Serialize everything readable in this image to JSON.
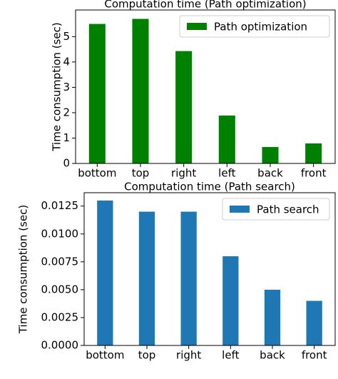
{
  "chart_data": [
    {
      "type": "bar",
      "title": "Computation time (Path optimization)",
      "ylabel": "Time consumption (sec)",
      "categories": [
        "bottom",
        "top",
        "right",
        "left",
        "back",
        "front"
      ],
      "series": [
        {
          "name": "Path optimization",
          "color": "#008000",
          "values": [
            5.5,
            5.7,
            4.43,
            1.89,
            0.65,
            0.79
          ]
        }
      ],
      "ylim": [
        0,
        6.05
      ],
      "yticks": [
        0,
        1,
        2,
        3,
        4,
        5
      ],
      "legend": "upper right"
    },
    {
      "type": "bar",
      "title": "Computation time (Path search)",
      "ylabel": "Time consumption (sec)",
      "categories": [
        "bottom",
        "top",
        "right",
        "left",
        "back",
        "front"
      ],
      "series": [
        {
          "name": "Path search",
          "color": "#1f77b4",
          "values": [
            0.013,
            0.012,
            0.012,
            0.008,
            0.005,
            0.004
          ]
        }
      ],
      "ylim": [
        0,
        0.0137
      ],
      "yticks": [
        {
          "value": 0,
          "label": "0.0000"
        },
        {
          "value": 0.0025,
          "label": "0.0025"
        },
        {
          "value": 0.005,
          "label": "0.0050"
        },
        {
          "value": 0.0075,
          "label": "0.0075"
        },
        {
          "value": 0.01,
          "label": "0.0100"
        },
        {
          "value": 0.0125,
          "label": "0.0125"
        }
      ],
      "legend": "upper right"
    }
  ]
}
